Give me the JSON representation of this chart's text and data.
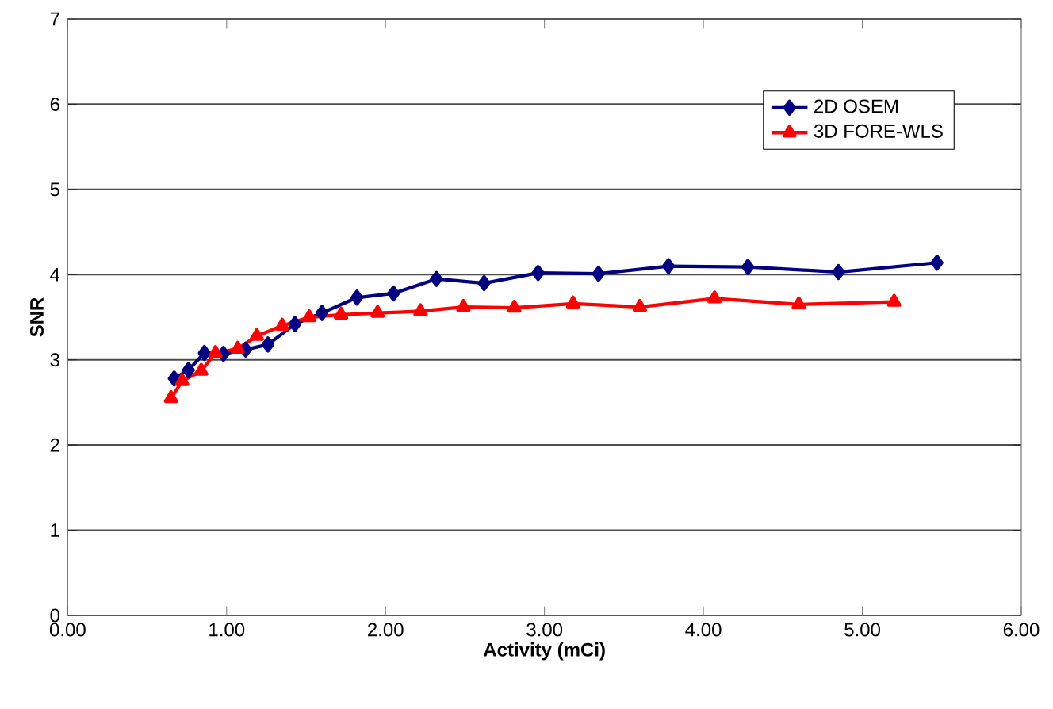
{
  "chart_data": {
    "type": "line",
    "xlabel": "Activity (mCi)",
    "ylabel": "SNR",
    "xlim": [
      0,
      6
    ],
    "ylim": [
      0,
      7
    ],
    "xticks": [
      {
        "value": 0,
        "label": "0.00"
      },
      {
        "value": 1,
        "label": "1.00"
      },
      {
        "value": 2,
        "label": "2.00"
      },
      {
        "value": 3,
        "label": "3.00"
      },
      {
        "value": 4,
        "label": "4.00"
      },
      {
        "value": 5,
        "label": "5.00"
      },
      {
        "value": 6,
        "label": "6.00"
      }
    ],
    "yticks": [
      0,
      1,
      2,
      3,
      4,
      5,
      6,
      7
    ],
    "grid": "y",
    "legend": "top right",
    "series": [
      {
        "name": "2D OSEM",
        "color": "#000080",
        "marker": "diamond",
        "x": [
          0.67,
          0.76,
          0.86,
          0.98,
          1.12,
          1.26,
          1.43,
          1.6,
          1.82,
          2.05,
          2.32,
          2.62,
          2.96,
          3.34,
          3.78,
          4.28,
          4.85,
          5.47
        ],
        "values": [
          2.78,
          2.88,
          3.08,
          3.07,
          3.12,
          3.18,
          3.42,
          3.55,
          3.73,
          3.78,
          3.95,
          3.9,
          4.02,
          4.01,
          4.1,
          4.09,
          4.03,
          4.14
        ]
      },
      {
        "name": "3D FORE-WLS",
        "color": "#ff0000",
        "marker": "triangle",
        "x": [
          0.65,
          0.72,
          0.84,
          0.93,
          1.07,
          1.19,
          1.35,
          1.52,
          1.72,
          1.95,
          2.22,
          2.49,
          2.81,
          3.18,
          3.6,
          4.07,
          4.6,
          5.2
        ],
        "values": [
          2.55,
          2.75,
          2.87,
          3.08,
          3.13,
          3.28,
          3.4,
          3.5,
          3.53,
          3.55,
          3.57,
          3.62,
          3.61,
          3.66,
          3.62,
          3.72,
          3.65,
          3.68
        ]
      }
    ]
  }
}
